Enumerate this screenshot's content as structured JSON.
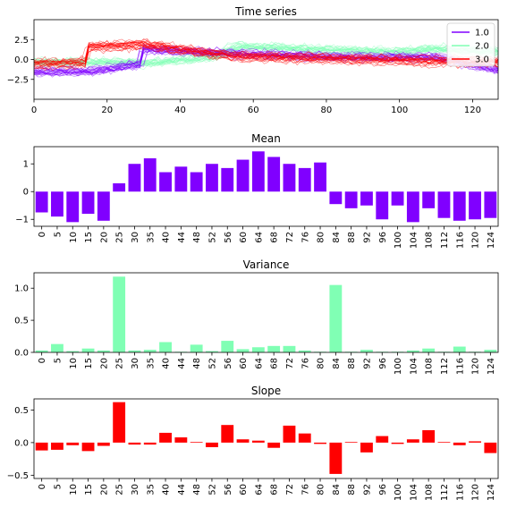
{
  "chart_data": [
    {
      "type": "line",
      "title": "Time series",
      "xlabel": "",
      "ylabel": "",
      "xlim": [
        0,
        127
      ],
      "ylim": [
        -5.0,
        5.0
      ],
      "xticks": [
        0,
        20,
        40,
        60,
        80,
        100,
        120
      ],
      "yticks": [
        2.5,
        0.0,
        -2.5
      ],
      "legend_position": "top-right",
      "series": [
        {
          "name": "1.0",
          "color": "#8000ff",
          "x": [
            0,
            14,
            15,
            29,
            30,
            52,
            84,
            110,
            127
          ],
          "values": [
            -1.5,
            -1.5,
            -1.5,
            -0.6,
            1.3,
            0.8,
            0.3,
            0.3,
            -1.3
          ]
        },
        {
          "name": "2.0",
          "color": "#80ffb4",
          "x": [
            0,
            28,
            29,
            50,
            56,
            64,
            84,
            100,
            110,
            127
          ],
          "values": [
            -0.3,
            -0.3,
            -0.5,
            0.4,
            1.7,
            1.6,
            1.2,
            1.0,
            1.4,
            1.0
          ]
        },
        {
          "name": "3.0",
          "color": "#ff0000",
          "x": [
            0,
            14,
            15,
            30,
            40,
            55,
            84,
            110,
            127
          ],
          "values": [
            -0.5,
            -0.4,
            1.6,
            1.9,
            1.3,
            0.4,
            0.1,
            -0.2,
            -0.3
          ]
        }
      ]
    },
    {
      "type": "bar",
      "title": "Mean",
      "color": "#8000ff",
      "categories": [
        "0",
        "5",
        "10",
        "15",
        "20",
        "25",
        "30",
        "35",
        "40",
        "44",
        "48",
        "52",
        "56",
        "60",
        "64",
        "68",
        "72",
        "76",
        "80",
        "84",
        "88",
        "92",
        "96",
        "100",
        "104",
        "108",
        "112",
        "116",
        "120",
        "124"
      ],
      "values": [
        -0.75,
        -0.9,
        -1.1,
        -0.8,
        -1.05,
        0.3,
        1.0,
        1.2,
        0.7,
        0.9,
        0.7,
        1.0,
        0.85,
        1.15,
        1.45,
        1.25,
        1.0,
        0.85,
        1.05,
        -0.45,
        -0.6,
        -0.5,
        -1.0,
        -0.5,
        -1.1,
        -0.6,
        -0.95,
        -1.05,
        -1.0,
        -0.95
      ],
      "yticks": [
        1,
        0,
        -1
      ],
      "ylim": [
        -1.25,
        1.62
      ]
    },
    {
      "type": "bar",
      "title": "Variance",
      "color": "#80ffb4",
      "categories": [
        "0",
        "5",
        "10",
        "15",
        "20",
        "25",
        "30",
        "35",
        "40",
        "44",
        "48",
        "52",
        "56",
        "60",
        "64",
        "68",
        "72",
        "76",
        "80",
        "84",
        "88",
        "92",
        "96",
        "100",
        "104",
        "108",
        "112",
        "116",
        "120",
        "124"
      ],
      "values": [
        0.03,
        0.13,
        0.02,
        0.06,
        0.03,
        1.18,
        0.03,
        0.04,
        0.16,
        0.01,
        0.12,
        0.02,
        0.18,
        0.05,
        0.08,
        0.1,
        0.1,
        0.03,
        0.01,
        1.05,
        0.01,
        0.04,
        0.01,
        0.01,
        0.03,
        0.06,
        0.01,
        0.09,
        0.01,
        0.04
      ],
      "yticks": [
        1.0,
        0.5,
        0.0
      ],
      "ylim": [
        0,
        1.24
      ]
    },
    {
      "type": "bar",
      "title": "Slope",
      "color": "#ff0000",
      "categories": [
        "0",
        "5",
        "10",
        "15",
        "20",
        "25",
        "30",
        "35",
        "40",
        "44",
        "48",
        "52",
        "56",
        "60",
        "64",
        "68",
        "72",
        "76",
        "80",
        "84",
        "88",
        "92",
        "96",
        "100",
        "104",
        "108",
        "112",
        "116",
        "120",
        "124"
      ],
      "values": [
        -0.12,
        -0.11,
        -0.04,
        -0.13,
        -0.05,
        0.62,
        -0.03,
        -0.03,
        0.15,
        0.08,
        0.01,
        -0.07,
        0.27,
        0.05,
        0.03,
        -0.08,
        0.26,
        0.14,
        -0.02,
        -0.48,
        0.01,
        -0.15,
        0.1,
        -0.02,
        0.05,
        0.19,
        0.01,
        -0.04,
        0.02,
        -0.16
      ],
      "yticks": [
        0.5,
        0.0,
        -0.5
      ],
      "ylim": [
        -0.55,
        0.67
      ]
    }
  ]
}
